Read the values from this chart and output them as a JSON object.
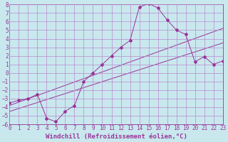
{
  "xlabel": "Windchill (Refroidissement éolien,°C)",
  "bg_color": "#c8e8ee",
  "grid_color": "#bb88cc",
  "line_color": "#993399",
  "xlim": [
    0,
    23
  ],
  "ylim": [
    -6,
    8
  ],
  "xticks": [
    0,
    1,
    2,
    3,
    4,
    5,
    6,
    7,
    8,
    9,
    10,
    11,
    12,
    13,
    14,
    15,
    16,
    17,
    18,
    19,
    20,
    21,
    22,
    23
  ],
  "yticks": [
    8,
    7,
    6,
    5,
    4,
    3,
    2,
    1,
    0,
    -1,
    -2,
    -3,
    -4,
    -5,
    -6
  ],
  "line1_x": [
    0,
    1,
    2,
    3,
    4,
    5,
    6,
    7,
    8,
    9,
    10,
    11,
    12,
    13,
    14,
    15,
    16,
    17,
    18,
    19,
    20,
    21,
    22,
    23
  ],
  "line1_y": [
    -3.5,
    -3.2,
    -3.0,
    -2.5,
    -5.3,
    -5.7,
    -4.5,
    -3.8,
    -1.0,
    0.0,
    1.0,
    2.0,
    3.0,
    3.8,
    7.7,
    8.1,
    7.6,
    6.2,
    5.0,
    4.5,
    1.3,
    1.9,
    1.0,
    1.4
  ],
  "line2_x": [
    0,
    23
  ],
  "line2_y": [
    -3.8,
    5.2
  ],
  "line3_x": [
    0,
    23
  ],
  "line3_y": [
    -4.5,
    3.5
  ],
  "xlabel_fontsize": 6.5,
  "tick_fontsize": 5.5
}
